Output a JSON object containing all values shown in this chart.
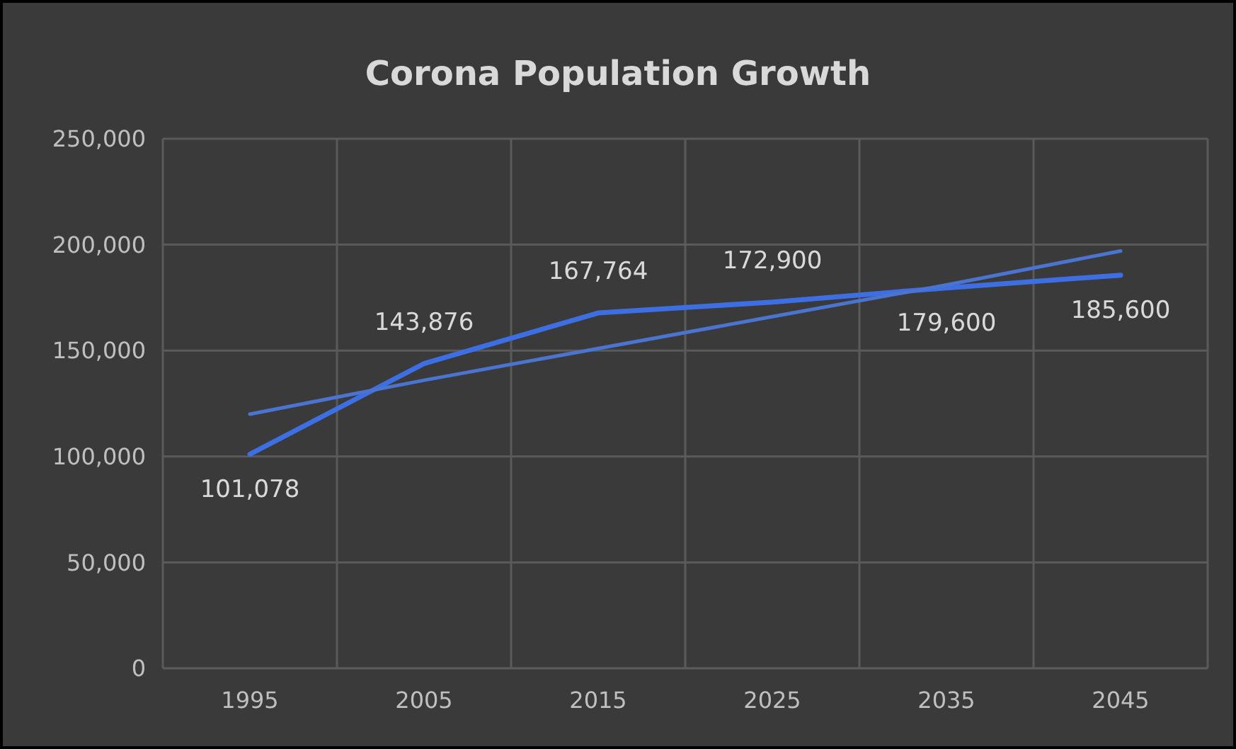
{
  "chart_data": {
    "type": "line",
    "title": "Corona Population Growth",
    "categories": [
      "1995",
      "2005",
      "2015",
      "2025",
      "2035",
      "2045"
    ],
    "series": [
      {
        "color": "#3d6fe3",
        "values": [
          101078,
          143876,
          167764,
          172900,
          179600,
          185600
        ],
        "value_labels": [
          "101,078",
          "143,876",
          "167,764",
          "172,900",
          "179,600",
          "185,600"
        ]
      },
      {
        "type": "line",
        "color": "#4a74d0",
        "values": [
          120000,
          136000,
          151000,
          166000,
          181000,
          197000
        ]
      }
    ],
    "ylim": [
      0,
      250000
    ],
    "yticks": [
      {
        "value": 0,
        "label": "0"
      },
      {
        "value": 50000,
        "label": "50,000"
      },
      {
        "value": 100000,
        "label": "100,000"
      },
      {
        "value": 150000,
        "label": "150,000"
      },
      {
        "value": 200000,
        "label": "200,000"
      },
      {
        "value": 250000,
        "label": "250,000"
      }
    ],
    "grid": true,
    "marker": "none",
    "line_style": "solid"
  }
}
